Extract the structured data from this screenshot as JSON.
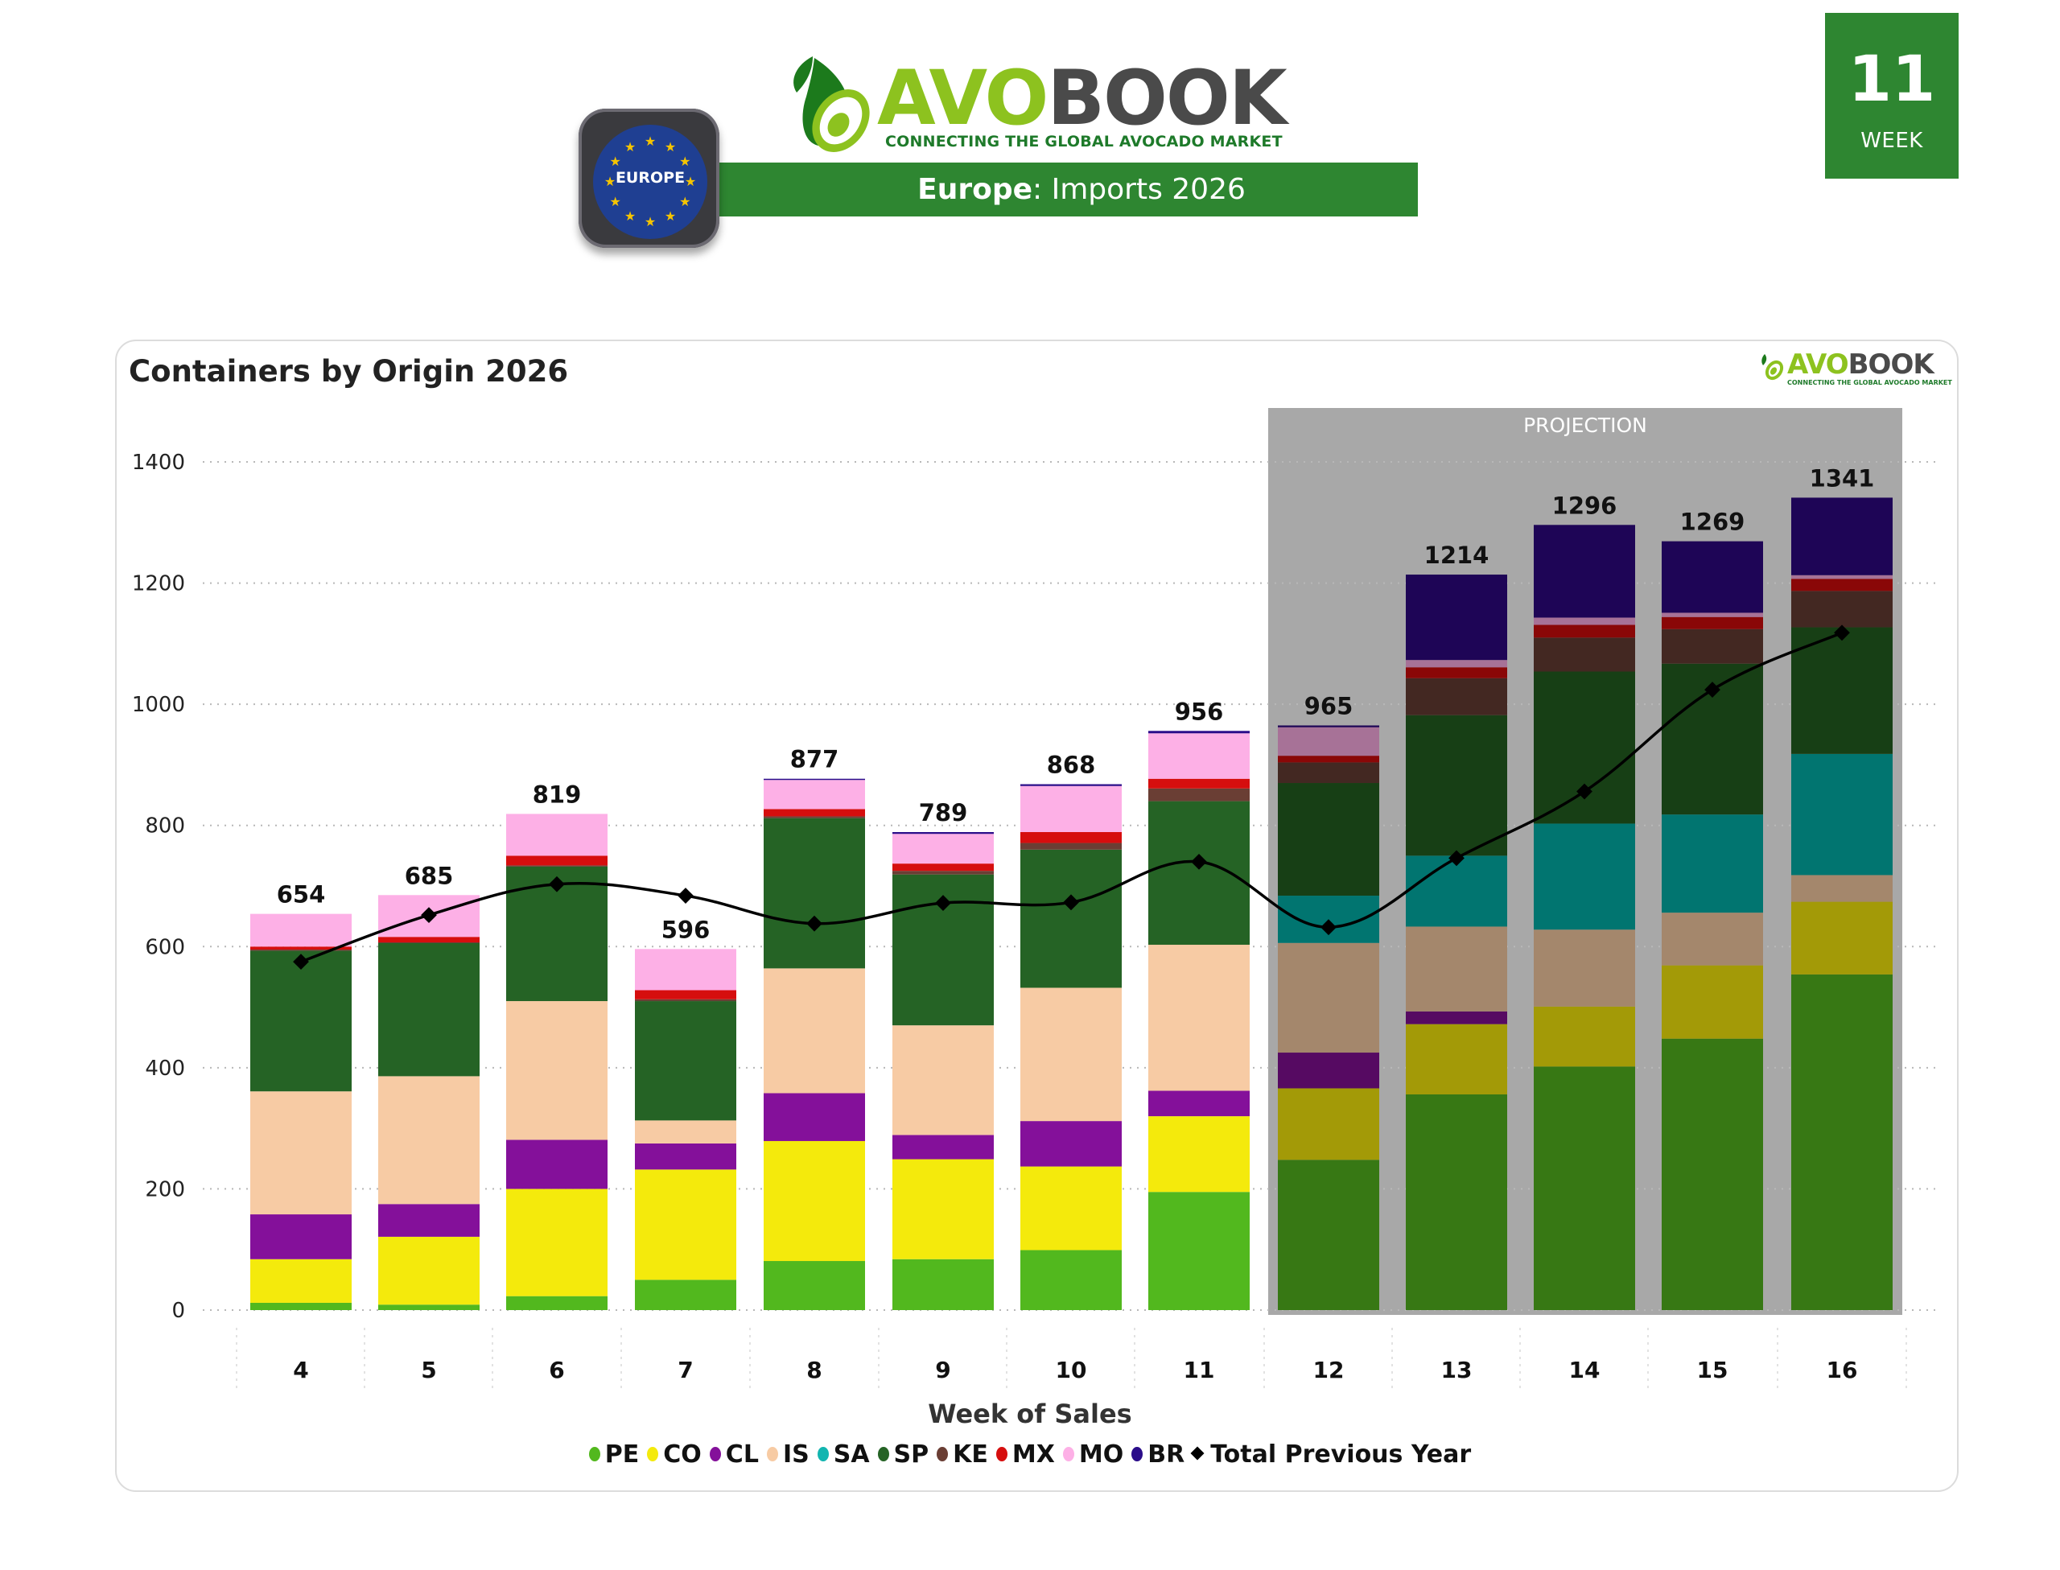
{
  "header": {
    "brand_avo": "AVO",
    "brand_book": "BOOK",
    "tagline": "CONNECTING THE GLOBAL AVOCADO MARKET",
    "banner_region": "Europe",
    "banner_rest": ": Imports 2026",
    "badge_label": "EUROPE",
    "week_number": "11",
    "week_label": "WEEK"
  },
  "card": {
    "title": "Containers by Origin 2026",
    "logo_avo": "AVO",
    "logo_book": "BOOK",
    "logo_tagline": "CONNECTING THE GLOBAL AVOCADO MARKET"
  },
  "colors": {
    "brand_green": "#2e8631",
    "projection_bg": "#a8a8a8"
  },
  "chart_data": {
    "type": "bar",
    "stacked": true,
    "title": "Containers by Origin 2026",
    "xlabel": "Week of Sales",
    "ylabel": "",
    "ylim": [
      0,
      1400
    ],
    "yticks": [
      0,
      200,
      400,
      600,
      800,
      1000,
      1200,
      1400
    ],
    "grid": true,
    "legend_position": "bottom",
    "categories": [
      "4",
      "5",
      "6",
      "7",
      "8",
      "9",
      "10",
      "11",
      "12",
      "13",
      "14",
      "15",
      "16"
    ],
    "projection": {
      "label": "PROJECTION",
      "from_week": "12",
      "to_week": "16"
    },
    "totals": [
      654,
      685,
      819,
      596,
      877,
      789,
      868,
      956,
      965,
      1214,
      1296,
      1269,
      1341
    ],
    "series": [
      {
        "name": "PE",
        "color": "#52b81e",
        "proj_color": "#377814",
        "values": [
          12,
          9,
          23,
          50,
          81,
          84,
          99,
          195,
          248,
          356,
          402,
          448,
          554
        ]
      },
      {
        "name": "CO",
        "color": "#f4ea0c",
        "proj_color": "#a39a07",
        "values": [
          72,
          112,
          177,
          182,
          198,
          165,
          138,
          125,
          118,
          116,
          99,
          121,
          120
        ]
      },
      {
        "name": "CL",
        "color": "#84109a",
        "proj_color": "#560a62",
        "values": [
          74,
          54,
          81,
          43,
          79,
          40,
          75,
          42,
          59,
          21,
          0,
          0,
          0
        ]
      },
      {
        "name": "IS",
        "color": "#f7cba4",
        "proj_color": "#a4876c",
        "values": [
          203,
          211,
          229,
          38,
          206,
          181,
          220,
          241,
          181,
          140,
          127,
          87,
          44
        ]
      },
      {
        "name": "SA",
        "color": "#12b5b0",
        "proj_color": "#017570",
        "values": [
          0,
          0,
          0,
          0,
          0,
          0,
          0,
          0,
          78,
          117,
          175,
          162,
          200
        ]
      },
      {
        "name": "SP",
        "color": "#256325",
        "proj_color": "#173f15",
        "values": [
          232,
          220,
          222,
          197,
          248,
          249,
          228,
          237,
          186,
          232,
          251,
          249,
          209
        ]
      },
      {
        "name": "KE",
        "color": "#6a3e34",
        "proj_color": "#432822",
        "values": [
          2,
          1,
          2,
          3,
          3,
          6,
          11,
          21,
          34,
          61,
          56,
          57,
          60
        ]
      },
      {
        "name": "MX",
        "color": "#d60e0e",
        "proj_color": "#8a0707",
        "values": [
          5,
          9,
          16,
          15,
          12,
          12,
          18,
          16,
          11,
          18,
          21,
          20,
          20
        ]
      },
      {
        "name": "MO",
        "color": "#fdb0e6",
        "proj_color": "#a77297",
        "values": [
          54,
          69,
          69,
          68,
          48,
          49,
          76,
          75,
          47,
          12,
          12,
          7,
          6
        ]
      },
      {
        "name": "BR",
        "color": "#2b0d8a",
        "proj_color": "#1e0556",
        "values": [
          0,
          0,
          0,
          0,
          2,
          3,
          3,
          4,
          3,
          141,
          153,
          118,
          128
        ]
      }
    ],
    "line_series": {
      "name": "Total Previous Year",
      "color": "#000000",
      "marker": "diamond",
      "values": [
        575,
        652,
        703,
        684,
        638,
        672,
        673,
        740,
        632,
        746,
        856,
        1024,
        1118
      ]
    }
  }
}
